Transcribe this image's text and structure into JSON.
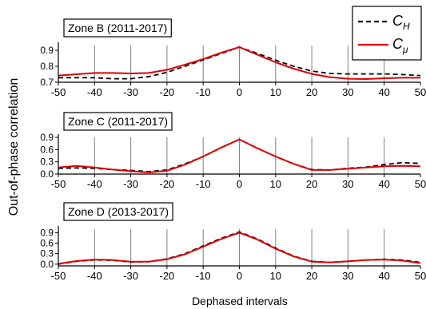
{
  "figure": {
    "ylabel": "Out-of-phase correlation",
    "xlabel": "Dephased intervals"
  },
  "legend": {
    "entries": [
      {
        "symbol": "C",
        "subscript": "H",
        "color": "#000000",
        "dash": true
      },
      {
        "symbol": "C",
        "subscript": "μ",
        "color": "#e00000",
        "dash": false
      }
    ]
  },
  "colors": {
    "c_h": "#000000",
    "c_mu": "#e00000",
    "grid": "#7f7f7f"
  },
  "chart_data": [
    {
      "type": "line",
      "title": "Zone B (2011-2017)",
      "xlim": [
        -50,
        50
      ],
      "ylim": [
        0.7,
        0.93
      ],
      "xticks": [
        -50,
        -40,
        -30,
        -20,
        -10,
        0,
        10,
        20,
        30,
        40,
        50
      ],
      "yticks": [
        0.7,
        0.8,
        0.9
      ],
      "ytick_labels": [
        "0.7",
        "0.8",
        "0.9"
      ],
      "vgrid": [
        -40,
        -30,
        -20,
        -10,
        0,
        10,
        20,
        30,
        40
      ],
      "x": [
        -50,
        -45,
        -40,
        -35,
        -30,
        -25,
        -20,
        -15,
        -10,
        -5,
        0,
        5,
        10,
        15,
        20,
        25,
        30,
        35,
        40,
        45,
        50
      ],
      "series": [
        {
          "name": "C_H",
          "values": [
            0.728,
            0.728,
            0.728,
            0.722,
            0.722,
            0.735,
            0.762,
            0.8,
            0.84,
            0.88,
            0.92,
            0.88,
            0.838,
            0.8,
            0.77,
            0.755,
            0.752,
            0.752,
            0.752,
            0.748,
            0.742
          ]
        },
        {
          "name": "C_μ",
          "values": [
            0.742,
            0.75,
            0.758,
            0.758,
            0.755,
            0.758,
            0.778,
            0.81,
            0.845,
            0.885,
            0.92,
            0.872,
            0.825,
            0.785,
            0.752,
            0.732,
            0.722,
            0.72,
            0.725,
            0.728,
            0.728
          ]
        }
      ]
    },
    {
      "type": "line",
      "title": "Zone C (2011-2017)",
      "xlim": [
        -50,
        50
      ],
      "ylim": [
        0,
        0.9
      ],
      "xticks": [
        -50,
        -40,
        -30,
        -20,
        -10,
        0,
        10,
        20,
        30,
        40,
        50
      ],
      "yticks": [
        0,
        0.3,
        0.6,
        0.9
      ],
      "ytick_labels": [
        "0.0",
        "0.3",
        "0.6",
        "0.9"
      ],
      "vgrid": [
        -40,
        -30,
        -20,
        -10,
        0,
        10,
        20,
        30,
        40
      ],
      "x": [
        -50,
        -45,
        -40,
        -35,
        -30,
        -25,
        -20,
        -15,
        -10,
        -5,
        0,
        5,
        10,
        15,
        20,
        25,
        30,
        35,
        40,
        45,
        50
      ],
      "series": [
        {
          "name": "C_H",
          "values": [
            0.14,
            0.15,
            0.14,
            0.11,
            0.09,
            0.06,
            0.1,
            0.25,
            0.43,
            0.65,
            0.85,
            0.63,
            0.43,
            0.25,
            0.11,
            0.1,
            0.14,
            0.17,
            0.23,
            0.28,
            0.26
          ]
        },
        {
          "name": "C_μ",
          "values": [
            0.16,
            0.2,
            0.16,
            0.11,
            0.07,
            0.04,
            0.08,
            0.23,
            0.43,
            0.65,
            0.85,
            0.63,
            0.43,
            0.25,
            0.1,
            0.1,
            0.13,
            0.16,
            0.19,
            0.2,
            0.19
          ]
        }
      ]
    },
    {
      "type": "line",
      "title": "Zone D (2013-2017)",
      "xlim": [
        -50,
        50
      ],
      "ylim": [
        -0.05,
        1.0
      ],
      "xticks": [
        -50,
        -40,
        -30,
        -20,
        -10,
        0,
        10,
        20,
        30,
        40,
        50
      ],
      "yticks": [
        0,
        0.3,
        0.6,
        0.9
      ],
      "ytick_labels": [
        "0.0",
        "0.3",
        "0.6",
        "0.9"
      ],
      "vgrid": [
        -40,
        -30,
        -20,
        -10,
        0,
        10,
        20,
        30,
        40
      ],
      "x": [
        -50,
        -45,
        -40,
        -35,
        -30,
        -25,
        -20,
        -15,
        -10,
        -5,
        0,
        5,
        10,
        15,
        20,
        25,
        30,
        35,
        40,
        45,
        50
      ],
      "series": [
        {
          "name": "C_H",
          "values": [
            0.0,
            0.08,
            0.12,
            0.11,
            0.06,
            0.07,
            0.15,
            0.3,
            0.52,
            0.74,
            0.92,
            0.72,
            0.46,
            0.23,
            0.08,
            0.05,
            0.08,
            0.12,
            0.14,
            0.12,
            0.05
          ]
        },
        {
          "name": "C_μ",
          "values": [
            0.01,
            0.09,
            0.13,
            0.12,
            0.07,
            0.07,
            0.14,
            0.28,
            0.5,
            0.72,
            0.9,
            0.7,
            0.44,
            0.22,
            0.07,
            0.05,
            0.08,
            0.12,
            0.13,
            0.1,
            0.03
          ]
        }
      ]
    }
  ]
}
